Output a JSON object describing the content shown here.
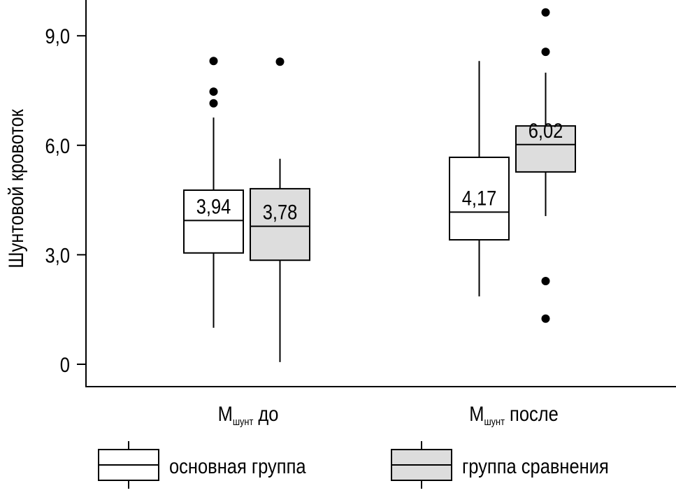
{
  "chart_data": {
    "type": "box",
    "title": "",
    "ylabel": "Шунтовой кровоток",
    "xlabel": "",
    "ylim": [
      -0.6,
      9.95
    ],
    "yticks": [
      0,
      3.0,
      6.0,
      9.0
    ],
    "ytick_labels": [
      "0",
      "3,0",
      "6,0",
      "9,0"
    ],
    "categories": [
      {
        "main": "M",
        "sub": "шунт",
        "rest": " до"
      },
      {
        "main": "M",
        "sub": "шунт",
        "rest": " после"
      }
    ],
    "series": [
      {
        "name": "основная группа",
        "color": "#ffffff",
        "boxes": [
          {
            "q1": 3.05,
            "median": 3.94,
            "q3": 4.77,
            "whisker_low": 1.0,
            "whisker_high": 6.76,
            "outliers": [
              8.31,
              7.47,
              7.15
            ],
            "label": "3,94"
          },
          {
            "q1": 3.41,
            "median": 4.17,
            "q3": 5.67,
            "whisker_low": 1.86,
            "whisker_high": 8.31,
            "outliers": [],
            "label": "4,17"
          }
        ]
      },
      {
        "name": "группа сравнения",
        "color": "#dddddd",
        "boxes": [
          {
            "q1": 2.85,
            "median": 3.78,
            "q3": 4.81,
            "whisker_low": 0.06,
            "whisker_high": 5.63,
            "outliers": [
              8.29
            ],
            "label": "3,78"
          },
          {
            "q1": 5.27,
            "median": 6.02,
            "q3": 6.53,
            "whisker_low": 4.06,
            "whisker_high": 7.99,
            "outliers": [
              9.64,
              8.56,
              2.28,
              1.25
            ],
            "label": "6,02"
          }
        ]
      }
    ],
    "grid": false,
    "legend_position": "bottom"
  }
}
